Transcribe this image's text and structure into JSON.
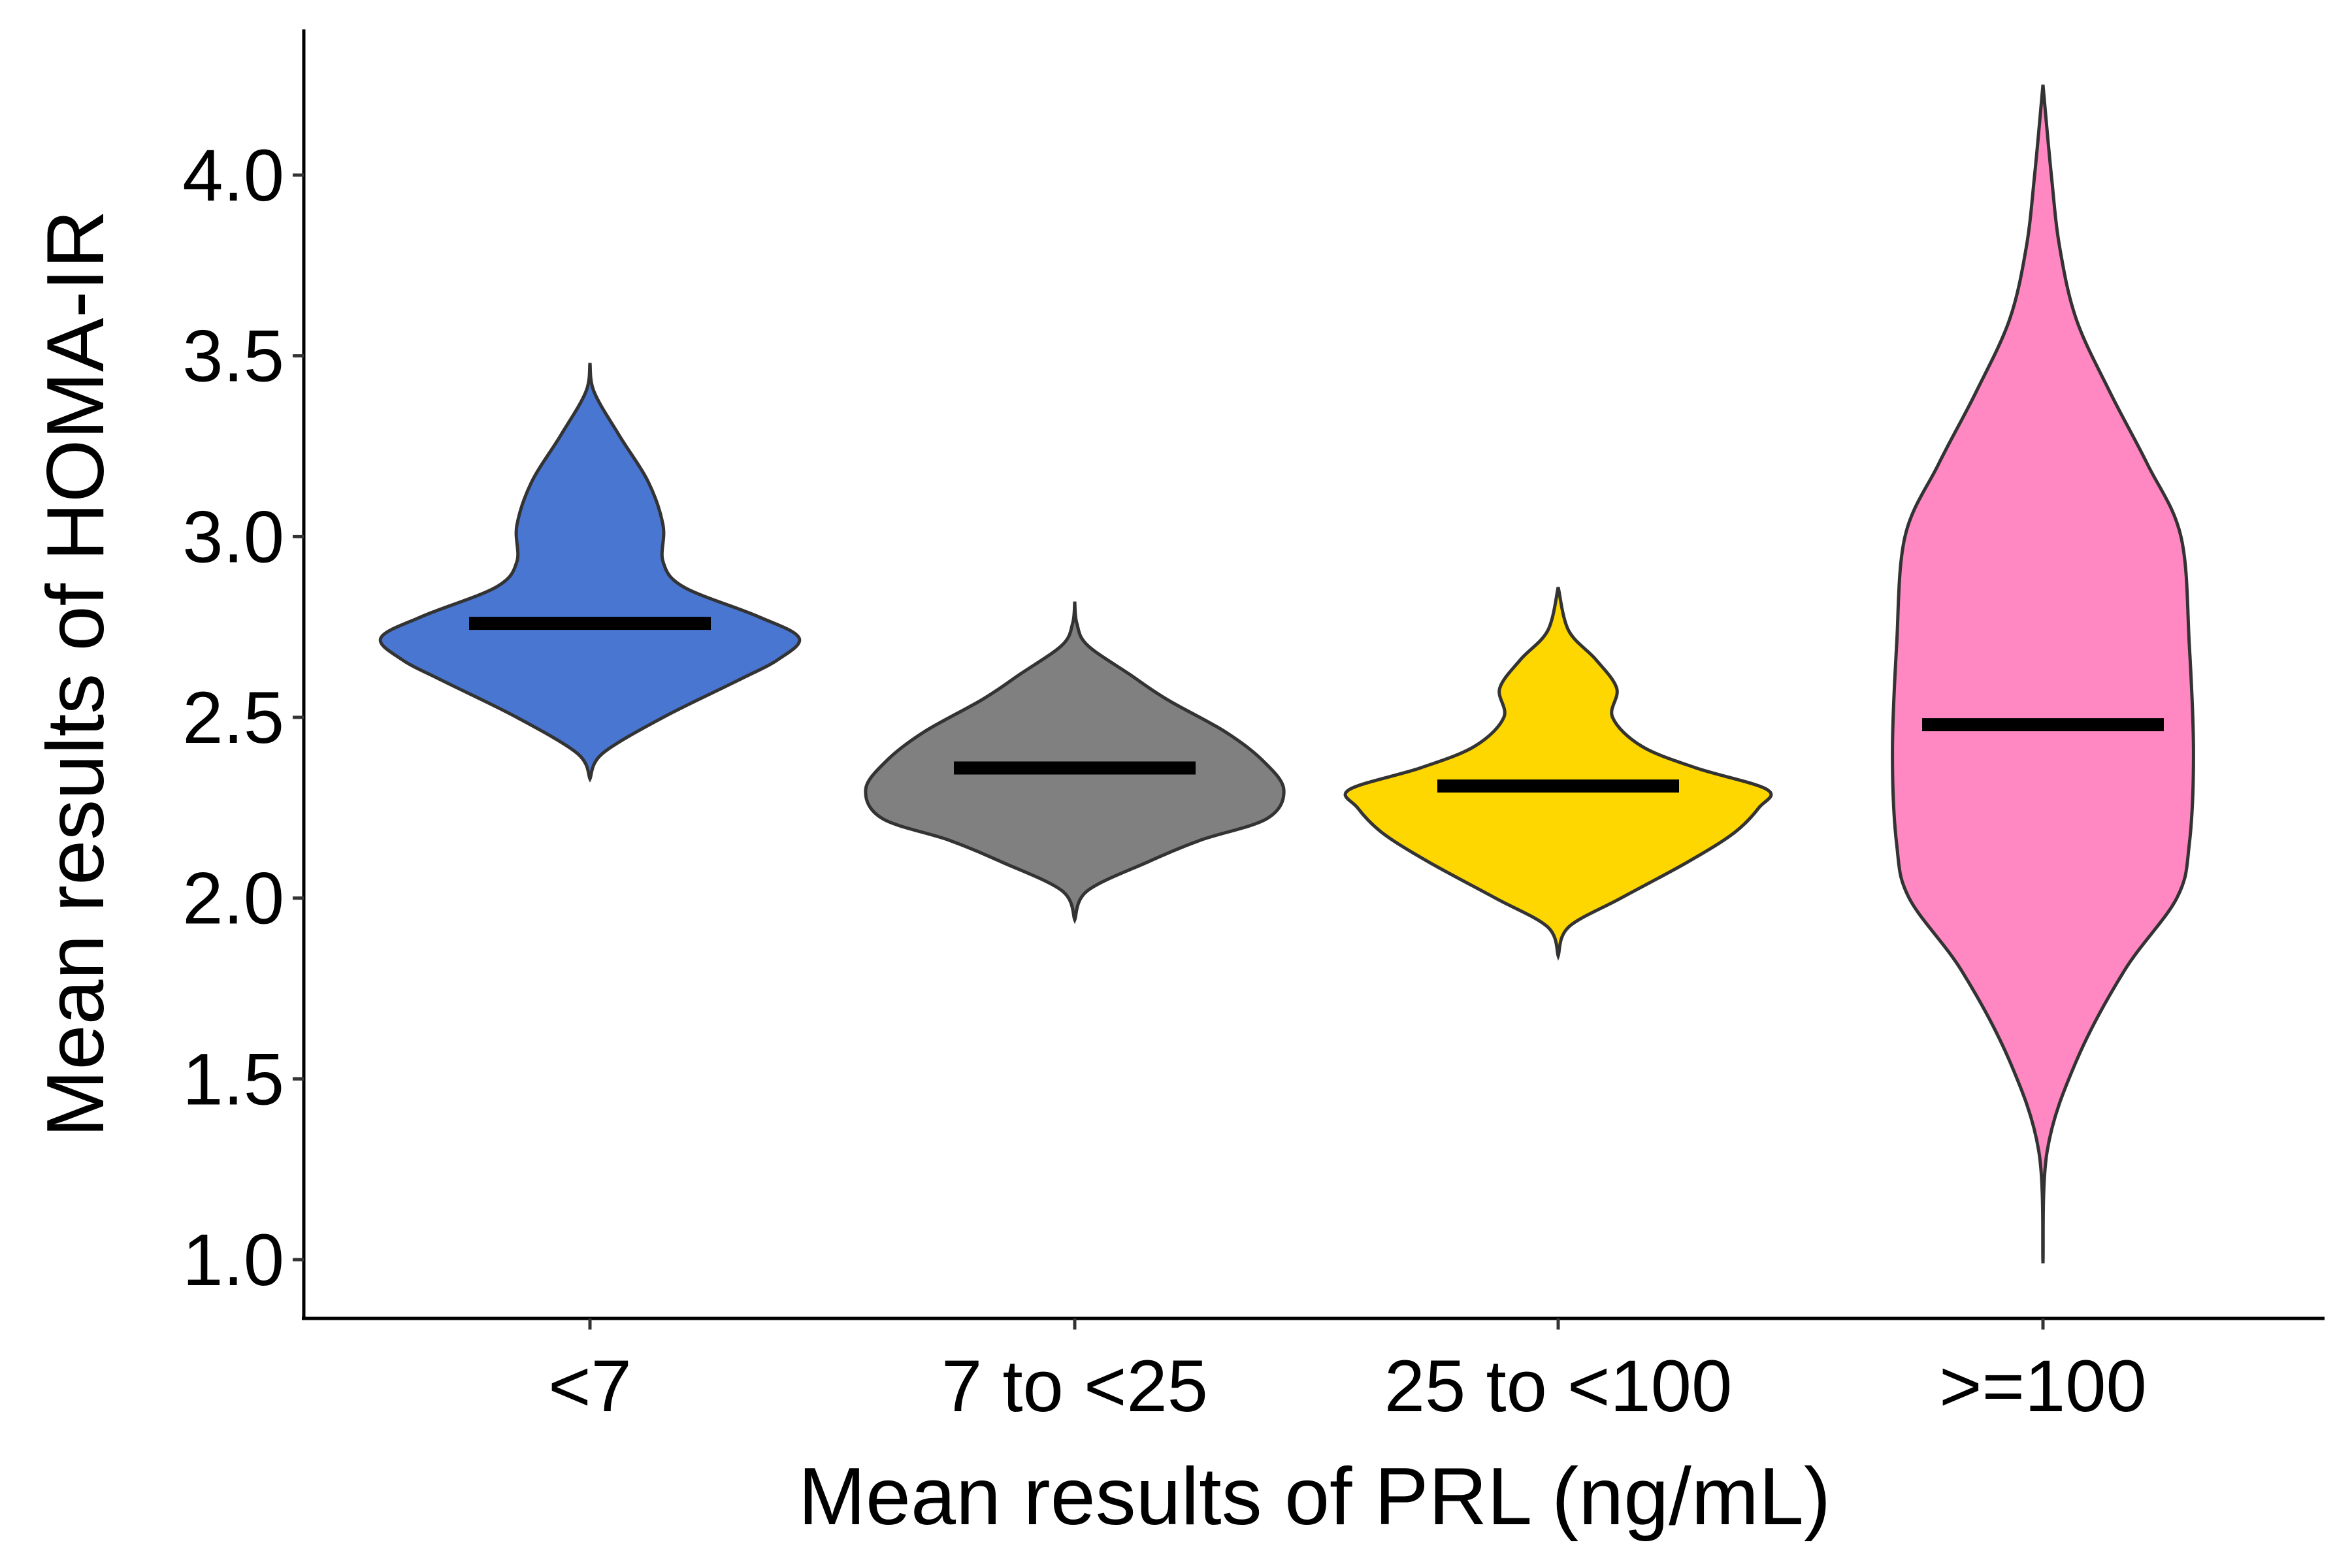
{
  "chart_data": {
    "type": "violin",
    "xlabel": "Mean results of PRL (ng/mL)",
    "ylabel": "Mean results of HOMA-IR",
    "ylim": [
      0.84,
      4.4
    ],
    "yticks": [
      "1.0",
      "1.5",
      "2.0",
      "2.5",
      "3.0",
      "3.5",
      "4.0"
    ],
    "categories": [
      "<7",
      "7 to <25",
      "25 to <100",
      ">=100"
    ],
    "grid": false,
    "legend": "none",
    "groups": [
      {
        "category": "<7",
        "color": "#4876D0",
        "mean": 2.76,
        "min": 2.33,
        "max": 3.48,
        "profile": [
          [
            2.33,
            0.0
          ],
          [
            2.4,
            0.06
          ],
          [
            2.5,
            0.35
          ],
          [
            2.6,
            0.7
          ],
          [
            2.66,
            0.9
          ],
          [
            2.72,
            1.0
          ],
          [
            2.78,
            0.8
          ],
          [
            2.86,
            0.45
          ],
          [
            2.93,
            0.35
          ],
          [
            3.03,
            0.35
          ],
          [
            3.15,
            0.28
          ],
          [
            3.28,
            0.14
          ],
          [
            3.4,
            0.02
          ],
          [
            3.48,
            0.0
          ]
        ]
      },
      {
        "category": "7 to <25",
        "color": "#808080",
        "mean": 2.36,
        "min": 1.94,
        "max": 2.82,
        "profile": [
          [
            1.94,
            0.0
          ],
          [
            2.02,
            0.06
          ],
          [
            2.1,
            0.35
          ],
          [
            2.16,
            0.6
          ],
          [
            2.22,
            0.92
          ],
          [
            2.3,
            1.0
          ],
          [
            2.38,
            0.9
          ],
          [
            2.46,
            0.72
          ],
          [
            2.55,
            0.44
          ],
          [
            2.62,
            0.26
          ],
          [
            2.7,
            0.06
          ],
          [
            2.76,
            0.01
          ],
          [
            2.82,
            0.0
          ]
        ]
      },
      {
        "category": "25 to <100",
        "color": "#FFD700",
        "mean": 2.31,
        "min": 1.84,
        "max": 2.86,
        "profile": [
          [
            1.84,
            0.0
          ],
          [
            1.92,
            0.05
          ],
          [
            2.0,
            0.3
          ],
          [
            2.1,
            0.62
          ],
          [
            2.18,
            0.84
          ],
          [
            2.25,
            0.96
          ],
          [
            2.3,
            1.0
          ],
          [
            2.36,
            0.66
          ],
          [
            2.42,
            0.4
          ],
          [
            2.5,
            0.26
          ],
          [
            2.58,
            0.28
          ],
          [
            2.66,
            0.18
          ],
          [
            2.74,
            0.05
          ],
          [
            2.86,
            0.0
          ]
        ]
      },
      {
        "category": ">=100",
        "color": "#FF88C2",
        "mean": 2.48,
        "min": 0.99,
        "max": 4.25,
        "profile": [
          [
            0.99,
            0.0
          ],
          [
            1.3,
            0.02
          ],
          [
            1.55,
            0.16
          ],
          [
            1.8,
            0.39
          ],
          [
            2.0,
            0.64
          ],
          [
            2.15,
            0.7
          ],
          [
            2.4,
            0.72
          ],
          [
            2.7,
            0.7
          ],
          [
            3.0,
            0.66
          ],
          [
            3.2,
            0.5
          ],
          [
            3.4,
            0.32
          ],
          [
            3.6,
            0.16
          ],
          [
            3.8,
            0.08
          ],
          [
            4.0,
            0.04
          ],
          [
            4.25,
            0.0
          ]
        ]
      }
    ]
  }
}
